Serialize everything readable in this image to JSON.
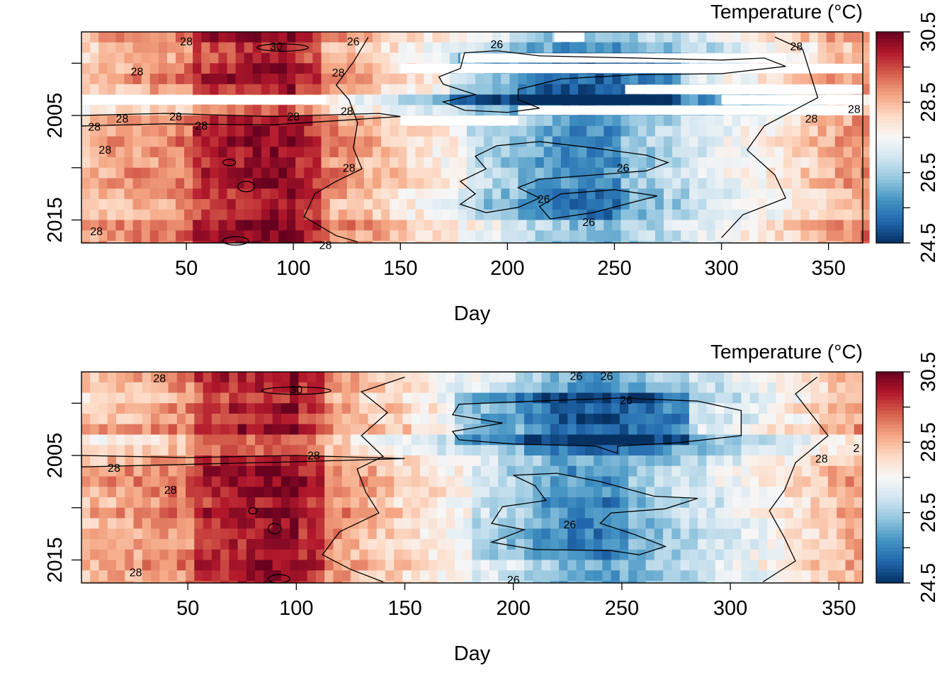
{
  "palette": [
    "#053061",
    "#2166ac",
    "#4393c3",
    "#92c5de",
    "#d1e5f0",
    "#f7f7f7",
    "#fddbc7",
    "#f4a582",
    "#d6604d",
    "#b2182b",
    "#67001f"
  ],
  "chart_data": [
    {
      "type": "heatmap",
      "title": "",
      "xlabel": "Day",
      "ylabel": "",
      "xlim": [
        1,
        366
      ],
      "ylim": [
        2017,
        1997
      ],
      "x_ticks": [
        50,
        100,
        150,
        200,
        250,
        300,
        350
      ],
      "y_ticks": [
        2005,
        2015
      ],
      "y_minor_ticks": [
        2000,
        2005,
        2010,
        2015
      ],
      "years": [
        1997,
        1998,
        1999,
        2000,
        2001,
        2002,
        2003,
        2004,
        2005,
        2006,
        2007,
        2008,
        2009,
        2010,
        2011,
        2012,
        2013,
        2014,
        2015,
        2016,
        2017
      ],
      "colorbar": {
        "title": "Temperature (°C)",
        "min": 24.5,
        "max": 30.5,
        "ticks": [
          24.5,
          26.5,
          28.5,
          30.5
        ]
      },
      "contour_levels": [
        26,
        28,
        30
      ],
      "contour_labels": [
        {
          "text": "28",
          "day": 50,
          "year": 1997.5
        },
        {
          "text": "30",
          "day": 92,
          "year": 1998.0
        },
        {
          "text": "26",
          "day": 128,
          "year": 1997.5
        },
        {
          "text": "26",
          "day": 195,
          "year": 1997.8
        },
        {
          "text": "28",
          "day": 27,
          "year": 2000.4
        },
        {
          "text": "28",
          "day": 121,
          "year": 2000.5
        },
        {
          "text": "28",
          "day": 335,
          "year": 1998.0
        },
        {
          "text": "28",
          "day": 20,
          "year": 2004.9
        },
        {
          "text": "28",
          "day": 45,
          "year": 2004.7
        },
        {
          "text": "28",
          "day": 100,
          "year": 2004.7
        },
        {
          "text": "28",
          "day": 125,
          "year": 2004.2
        },
        {
          "text": "28",
          "day": 7,
          "year": 2005.7
        },
        {
          "text": "28",
          "day": 57,
          "year": 2005.6
        },
        {
          "text": "28",
          "day": 12,
          "year": 2007.9
        },
        {
          "text": "28",
          "day": 126,
          "year": 2009.6
        },
        {
          "text": "28",
          "day": 342,
          "year": 2004.9
        },
        {
          "text": "28",
          "day": 362,
          "year": 2004.0
        },
        {
          "text": "26",
          "day": 254,
          "year": 2009.6
        },
        {
          "text": "26",
          "day": 217,
          "year": 2012.6
        },
        {
          "text": "26",
          "day": 238,
          "year": 2014.8
        },
        {
          "text": "28",
          "day": 8,
          "year": 2015.7
        },
        {
          "text": "28",
          "day": 115,
          "year": 2017.0
        }
      ],
      "missing": [
        {
          "day_start": 1,
          "day_end": 115,
          "year": 2003
        },
        {
          "day_start": 150,
          "day_end": 205,
          "year": 2005
        },
        {
          "day_start": 205,
          "day_end": 366,
          "year": 2004
        },
        {
          "day_start": 150,
          "day_end": 366,
          "year": 2000
        },
        {
          "day_start": 178,
          "day_end": 330,
          "year": 1999
        },
        {
          "day_start": 222,
          "day_end": 236,
          "year": 1997
        },
        {
          "day_start": 255,
          "day_end": 366,
          "year": 2002
        },
        {
          "day_start": 300,
          "day_end": 366,
          "year": 2003
        }
      ]
    },
    {
      "type": "heatmap",
      "title": "",
      "xlabel": "Day",
      "ylabel": "",
      "xlim": [
        1,
        361
      ],
      "ylim": [
        2017,
        1997
      ],
      "x_ticks": [
        50,
        100,
        150,
        200,
        250,
        300,
        350
      ],
      "y_ticks": [
        2005,
        2015
      ],
      "y_minor_ticks": [
        2000,
        2005,
        2010,
        2015
      ],
      "years": [
        1997,
        1998,
        1999,
        2000,
        2001,
        2002,
        2003,
        2004,
        2005,
        2006,
        2007,
        2008,
        2009,
        2010,
        2011,
        2012,
        2013,
        2014,
        2015,
        2016,
        2017
      ],
      "colorbar": {
        "title": "Temperature (°C)",
        "min": 24.5,
        "max": 30.5,
        "ticks": [
          24.5,
          26.5,
          28.5,
          30.5
        ]
      },
      "contour_levels": [
        26,
        28,
        30
      ],
      "contour_labels": [
        {
          "text": "28",
          "day": 37,
          "year": 1997.2
        },
        {
          "text": "30",
          "day": 100,
          "year": 1998.3
        },
        {
          "text": "26",
          "day": 229,
          "year": 1997.0
        },
        {
          "text": "26",
          "day": 243,
          "year": 1997.0
        },
        {
          "text": "26",
          "day": 252,
          "year": 1999.3
        },
        {
          "text": "28",
          "day": 108,
          "year": 2004.6
        },
        {
          "text": "28",
          "day": 16,
          "year": 2005.8
        },
        {
          "text": "28",
          "day": 42,
          "year": 2007.9
        },
        {
          "text": "28",
          "day": 342,
          "year": 2004.9
        },
        {
          "text": "2",
          "day": 358,
          "year": 2003.9
        },
        {
          "text": "26",
          "day": 226,
          "year": 2011.2
        },
        {
          "text": "26",
          "day": 200,
          "year": 2016.5
        },
        {
          "text": "28",
          "day": 26,
          "year": 2015.8
        }
      ],
      "missing": []
    }
  ]
}
